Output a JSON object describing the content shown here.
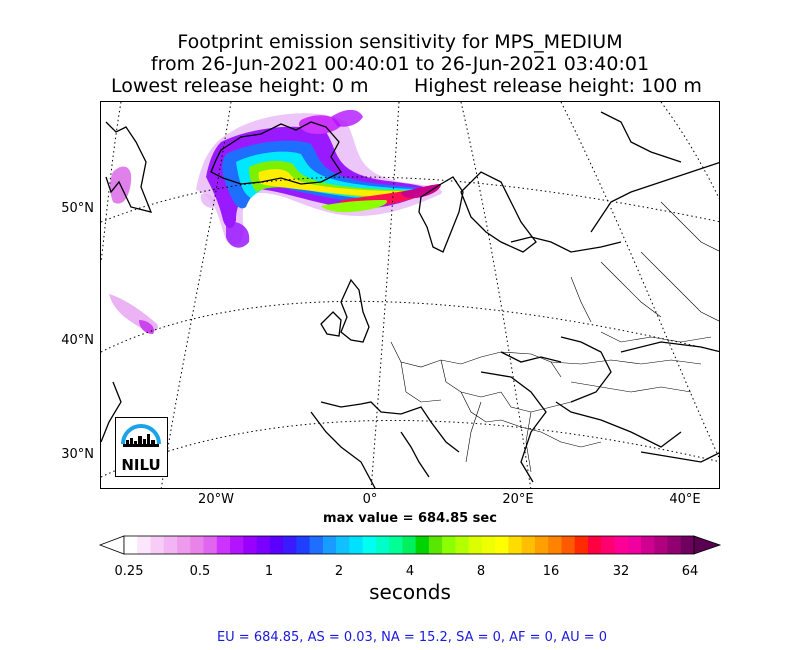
{
  "title": {
    "line1": "Footprint emission sensitivity for MPS_MEDIUM",
    "line2": "from 26-Jun-2021 00:40:01 to 26-Jun-2021 03:40:01",
    "lowest": "Lowest release height: 0 m",
    "highest": "Highest release height: 100 m"
  },
  "map": {
    "lat_labels": [
      "50°N",
      "40°N",
      "30°N"
    ],
    "lon_labels": [
      "20°W",
      "0°",
      "20°E",
      "40°E"
    ],
    "logo_text": "NILU"
  },
  "max_value_text": "max value = 684.85 sec",
  "colorbar": {
    "ticks": [
      "0.25",
      "0.5",
      "1",
      "2",
      "4",
      "8",
      "16",
      "32",
      "64"
    ],
    "unit": "seconds",
    "colors": [
      "#ffffff",
      "#fbe6fb",
      "#f7cdf7",
      "#f3b4f3",
      "#ee9bee",
      "#e982e9",
      "#e066f0",
      "#cc33ff",
      "#b314ff",
      "#9900ff",
      "#7a00ff",
      "#5a00ff",
      "#3a1aff",
      "#1f3fff",
      "#1e6eff",
      "#189cff",
      "#10c0ff",
      "#00e0ff",
      "#00fff0",
      "#00ffc8",
      "#00ff96",
      "#00f060",
      "#00d400",
      "#5ae600",
      "#8cff00",
      "#b4ff00",
      "#dcff00",
      "#f0ff00",
      "#ffff00",
      "#ffdc00",
      "#ffbe00",
      "#ffa000",
      "#ff8200",
      "#ff5a00",
      "#ff2a00",
      "#ff0040",
      "#ff0070",
      "#ff0096",
      "#f000a0",
      "#d00090",
      "#b00080",
      "#900070",
      "#700060"
    ],
    "under_color": "#ffffff",
    "over_color": "#5a0050"
  },
  "stats_line": "EU = 684.85,  AS = 0.03,  NA = 15.2,  SA = 0,  AF = 0,  AU = 0"
}
